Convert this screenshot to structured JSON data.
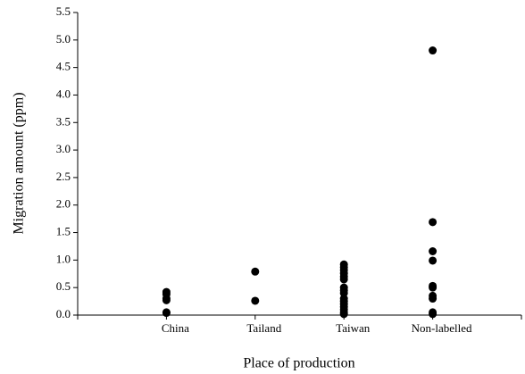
{
  "chart_data": {
    "type": "strip",
    "x_label": "Place of production",
    "y_label": "Migration amount (ppm)",
    "categories": [
      "China",
      "Tailand",
      "Taiwan",
      "Non-labelled"
    ],
    "values": [
      [
        0.42,
        0.38,
        0.3,
        0.27,
        0.05,
        0.04
      ],
      [
        0.79,
        0.26
      ],
      [
        0.92,
        0.87,
        0.82,
        0.76,
        0.7,
        0.65,
        0.5,
        0.45,
        0.4,
        0.3,
        0.25,
        0.2,
        0.15,
        0.1,
        0.05,
        0.02
      ],
      [
        4.81,
        1.69,
        1.16,
        0.99,
        0.53,
        0.5,
        0.35,
        0.3,
        0.05,
        0.02
      ]
    ],
    "color": "#000000",
    "ylim": [
      0,
      5.5
    ],
    "yticks": [
      {
        "value": 0,
        "label": "0.0"
      },
      {
        "value": 0.5,
        "label": "0.5"
      },
      {
        "value": 1,
        "label": "1.0"
      },
      {
        "value": 1.5,
        "label": "1.5"
      },
      {
        "value": 2,
        "label": "2.0"
      },
      {
        "value": 2.5,
        "label": "2.5"
      },
      {
        "value": 3,
        "label": "3.0"
      },
      {
        "value": 3.5,
        "label": "3.5"
      },
      {
        "value": 4,
        "label": "4.0"
      },
      {
        "value": 4.5,
        "label": "4.5"
      },
      {
        "value": 5,
        "label": "5.0"
      },
      {
        "value": 5.5,
        "label": "5.5"
      }
    ]
  }
}
